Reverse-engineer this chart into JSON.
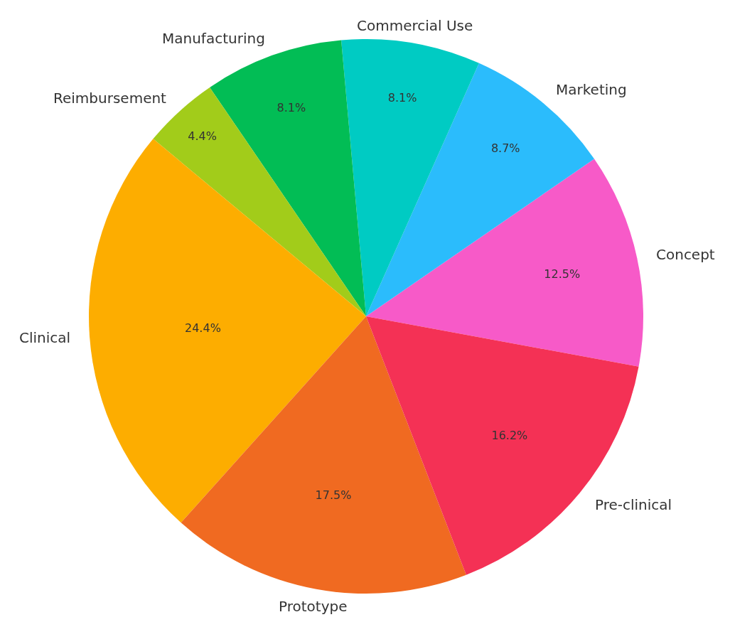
{
  "chart_data": {
    "type": "pie",
    "categories": [
      "Concept",
      "Marketing",
      "Commercial Use",
      "Manufacturing",
      "Reimbursement",
      "Clinical",
      "Prototype",
      "Pre-clinical"
    ],
    "values": [
      12.5,
      8.7,
      8.1,
      8.1,
      4.4,
      24.4,
      17.5,
      16.2
    ],
    "value_labels": [
      "12.5%",
      "8.7%",
      "8.1%",
      "8.1%",
      "4.4%",
      "24.4%",
      "17.5%",
      "16.2%"
    ],
    "colors": [
      "#f75ac8",
      "#2bbcfc",
      "#00cbc3",
      "#02bd55",
      "#a2cc1a",
      "#fdad00",
      "#f06a21",
      "#f43155"
    ],
    "legend": false
  }
}
